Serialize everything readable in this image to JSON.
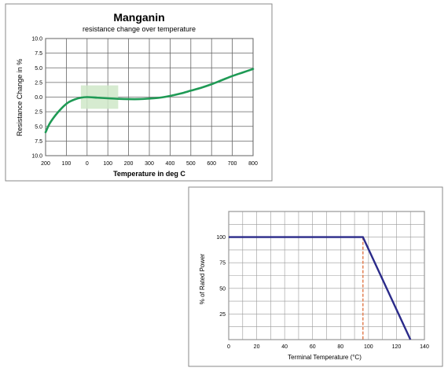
{
  "chart_data": [
    {
      "type": "line",
      "title": "Manganin",
      "subtitle": "resistance change over temperature",
      "xlabel": "Temperature in deg C",
      "ylabel": "Resistance Change in %",
      "x_ticks": [
        {
          "v": -200,
          "label": "200"
        },
        {
          "v": -100,
          "label": "100"
        },
        {
          "v": 0,
          "label": "0"
        },
        {
          "v": 100,
          "label": "100"
        },
        {
          "v": 200,
          "label": "200"
        },
        {
          "v": 300,
          "label": "300"
        },
        {
          "v": 400,
          "label": "400"
        },
        {
          "v": 500,
          "label": "500"
        },
        {
          "v": 600,
          "label": "600"
        },
        {
          "v": 700,
          "label": "700"
        },
        {
          "v": 800,
          "label": "800"
        }
      ],
      "y_ticks": [
        {
          "v": 10,
          "label": "10.0"
        },
        {
          "v": 7.5,
          "label": "7.5"
        },
        {
          "v": 5,
          "label": "5.0"
        },
        {
          "v": 2.5,
          "label": "2.5"
        },
        {
          "v": 0,
          "label": "0.0"
        },
        {
          "v": -2.5,
          "label": "2.5"
        },
        {
          "v": -5,
          "label": "5.0"
        },
        {
          "v": -7.5,
          "label": "7.5"
        },
        {
          "v": -10,
          "label": "10.0"
        }
      ],
      "xlim": [
        -200,
        800
      ],
      "ylim": [
        -10,
        10
      ],
      "grid": true,
      "highlight_region": {
        "x": [
          -30,
          150
        ],
        "y": [
          -2,
          2
        ],
        "color": "#cfe8c8"
      },
      "series": [
        {
          "color": "#1f9a55",
          "x": [
            -200,
            -180,
            -150,
            -120,
            -90,
            -60,
            -30,
            0,
            50,
            100,
            150,
            200,
            250,
            300,
            350,
            400,
            450,
            500,
            550,
            600,
            650,
            700,
            750,
            800
          ],
          "y": [
            -6.0,
            -4.5,
            -3.0,
            -1.8,
            -0.9,
            -0.4,
            -0.1,
            0.0,
            -0.1,
            -0.2,
            -0.3,
            -0.35,
            -0.35,
            -0.25,
            -0.1,
            0.2,
            0.6,
            1.1,
            1.6,
            2.2,
            2.9,
            3.6,
            4.2,
            4.8
          ]
        }
      ]
    },
    {
      "type": "line",
      "xlabel": "Terminal Temperature (°C)",
      "ylabel": "% of Rated Power",
      "x_ticks": [
        {
          "v": 0,
          "label": "0"
        },
        {
          "v": 20,
          "label": "20"
        },
        {
          "v": 40,
          "label": "40"
        },
        {
          "v": 60,
          "label": "60"
        },
        {
          "v": 80,
          "label": "80"
        },
        {
          "v": 100,
          "label": "100"
        },
        {
          "v": 120,
          "label": "120"
        },
        {
          "v": 140,
          "label": "140"
        }
      ],
      "y_ticks": [
        {
          "v": 25,
          "label": "25"
        },
        {
          "v": 50,
          "label": "50"
        },
        {
          "v": 75,
          "label": "75"
        },
        {
          "v": 100,
          "label": "100"
        }
      ],
      "xlim": [
        0,
        140
      ],
      "ylim": [
        0,
        125
      ],
      "grid": true,
      "reference_line": {
        "x": 96,
        "color": "#e3855a",
        "style": "dashed"
      },
      "series": [
        {
          "color": "#2b2b8a",
          "x": [
            0,
            96,
            130
          ],
          "y": [
            100,
            100,
            0
          ]
        }
      ]
    }
  ]
}
